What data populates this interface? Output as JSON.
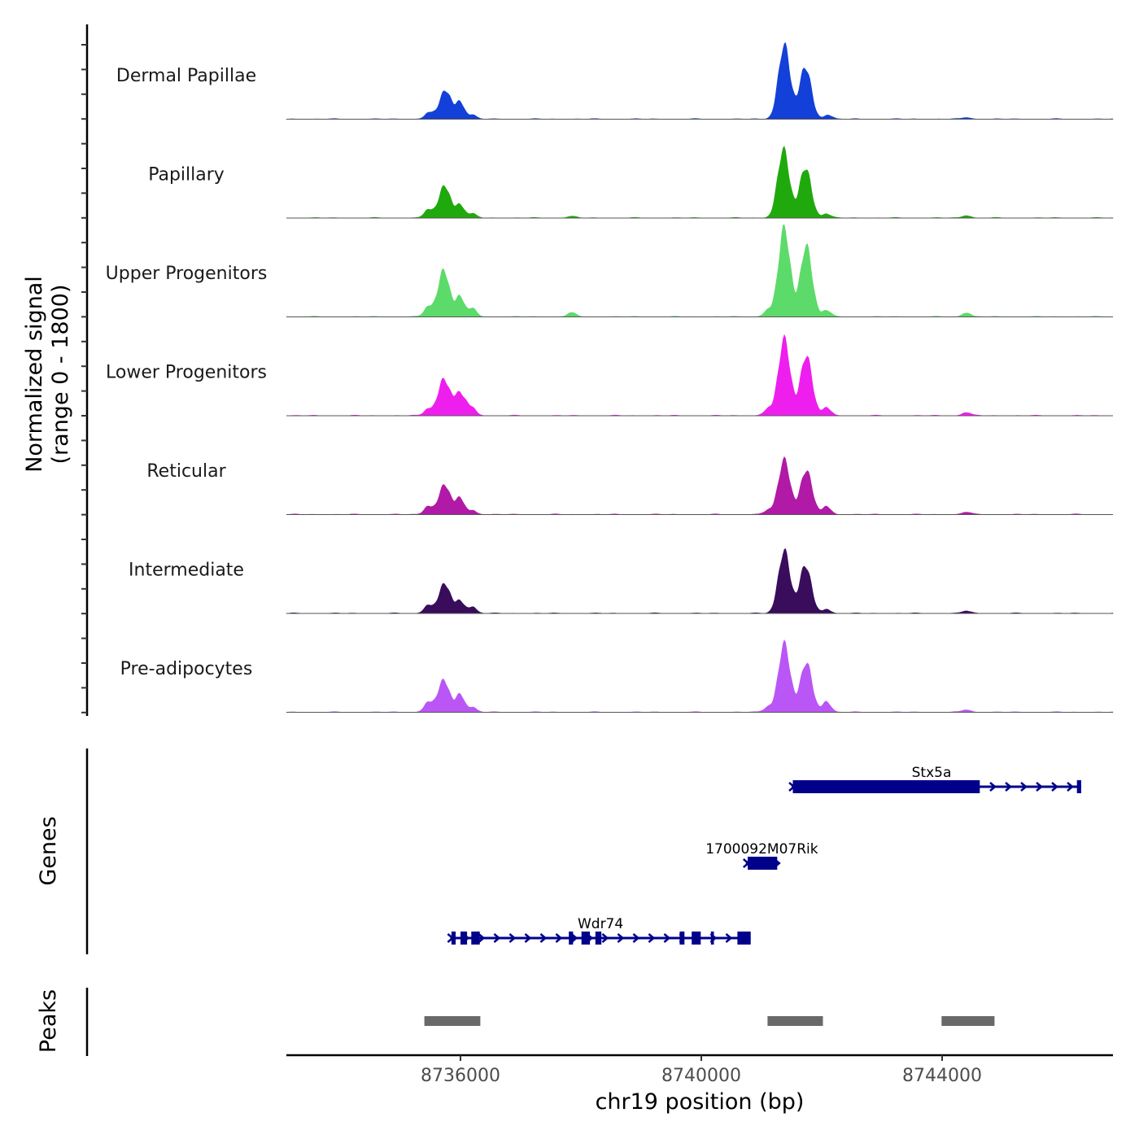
{
  "chart_data": {
    "type": "area",
    "title": "",
    "xlabel": "chr19 position (bp)",
    "ylabel": "Normalized signal\n(range 0 - 1800)",
    "ylabel_lines": [
      "Normalized signal",
      "(range 0 - 1800)"
    ],
    "xlim": [
      8733108,
      8746838
    ],
    "ylim": [
      0,
      1800
    ],
    "x_ticks": [
      8736000,
      8740000,
      8744000
    ],
    "x_tick_labels": [
      "8736000",
      "8740000",
      "8744000"
    ],
    "grid": false,
    "legend": "none",
    "tracks": [
      {
        "name": "Dermal Papillae",
        "color": "#1340D9",
        "peaks": [
          [
            8735479,
            120
          ],
          [
            8735750,
            535
          ],
          [
            8735993,
            310
          ],
          [
            8736196,
            75
          ],
          [
            8741378,
            1370
          ],
          [
            8741729,
            965
          ],
          [
            8742107,
            75
          ],
          [
            8744405,
            30
          ]
        ]
      },
      {
        "name": "Papillary",
        "color": "#20A90D",
        "peaks": [
          [
            8735465,
            150
          ],
          [
            8735736,
            595
          ],
          [
            8735993,
            240
          ],
          [
            8736196,
            75
          ],
          [
            8737845,
            30
          ],
          [
            8741365,
            1265
          ],
          [
            8741729,
            935
          ],
          [
            8742080,
            75
          ],
          [
            8744405,
            45
          ]
        ]
      },
      {
        "name": "Upper Progenitors",
        "color": "#5CDB6A",
        "peaks": [
          [
            8735465,
            180
          ],
          [
            8735722,
            860
          ],
          [
            8735993,
            370
          ],
          [
            8736196,
            150
          ],
          [
            8737845,
            75
          ],
          [
            8741108,
            120
          ],
          [
            8741378,
            1635
          ],
          [
            8741743,
            1310
          ],
          [
            8742080,
            120
          ],
          [
            8744405,
            75
          ]
        ]
      },
      {
        "name": "Lower Progenitors",
        "color": "#EE1FEE",
        "peaks": [
          [
            8735465,
            120
          ],
          [
            8735722,
            670
          ],
          [
            8735993,
            415
          ],
          [
            8736196,
            120
          ],
          [
            8741108,
            120
          ],
          [
            8741378,
            1415
          ],
          [
            8741743,
            1115
          ],
          [
            8742080,
            150
          ],
          [
            8744405,
            60
          ]
        ]
      },
      {
        "name": "Reticular",
        "color": "#B01AA6",
        "peaks": [
          [
            8735465,
            150
          ],
          [
            8735736,
            550
          ],
          [
            8735993,
            300
          ],
          [
            8736196,
            75
          ],
          [
            8741108,
            75
          ],
          [
            8741378,
            1010
          ],
          [
            8741743,
            820
          ],
          [
            8742080,
            150
          ],
          [
            8744405,
            45
          ]
        ]
      },
      {
        "name": "Intermediate",
        "color": "#3A0C5C",
        "peaks": [
          [
            8735465,
            150
          ],
          [
            8735736,
            550
          ],
          [
            8735993,
            225
          ],
          [
            8736196,
            120
          ],
          [
            8741378,
            1160
          ],
          [
            8741729,
            890
          ],
          [
            8742080,
            75
          ],
          [
            8744405,
            45
          ]
        ]
      },
      {
        "name": "Pre-adipocytes",
        "color": "#BA56F5",
        "peaks": [
          [
            8735465,
            180
          ],
          [
            8735722,
            595
          ],
          [
            8735993,
            330
          ],
          [
            8736196,
            90
          ],
          [
            8741108,
            90
          ],
          [
            8741378,
            1265
          ],
          [
            8741743,
            920
          ],
          [
            8742080,
            195
          ],
          [
            8744405,
            45
          ]
        ]
      }
    ],
    "genes_track": {
      "label": "Genes",
      "color": "#00008B",
      "genes": [
        {
          "name": "Stx5a",
          "strand": "+",
          "start": 8741500,
          "end": 8746310,
          "exons": [
            [
              8741520,
              8744625
            ],
            [
              8746240,
              8746310
            ]
          ]
        },
        {
          "name": "1700092M07Rik",
          "strand": "+",
          "start": 8740740,
          "end": 8741270,
          "exons": [
            [
              8740770,
              8741260
            ]
          ]
        },
        {
          "name": "Wdr74",
          "strand": "+",
          "start": 8735830,
          "end": 8740820,
          "exons": [
            [
              8735850,
              8735920
            ],
            [
              8736000,
              8736110
            ],
            [
              8736180,
              8736320
            ],
            [
              8737800,
              8737870
            ],
            [
              8738010,
              8738150
            ],
            [
              8738240,
              8738340
            ],
            [
              8739640,
              8739720
            ],
            [
              8739840,
              8739990
            ],
            [
              8740160,
              8740210
            ],
            [
              8740600,
              8740820
            ]
          ]
        }
      ]
    },
    "peaks_track": {
      "label": "Peaks",
      "color": "#696969",
      "regions": [
        [
          8735400,
          8736330
        ],
        [
          8741100,
          8742020
        ],
        [
          8743990,
          8744870
        ]
      ]
    }
  }
}
